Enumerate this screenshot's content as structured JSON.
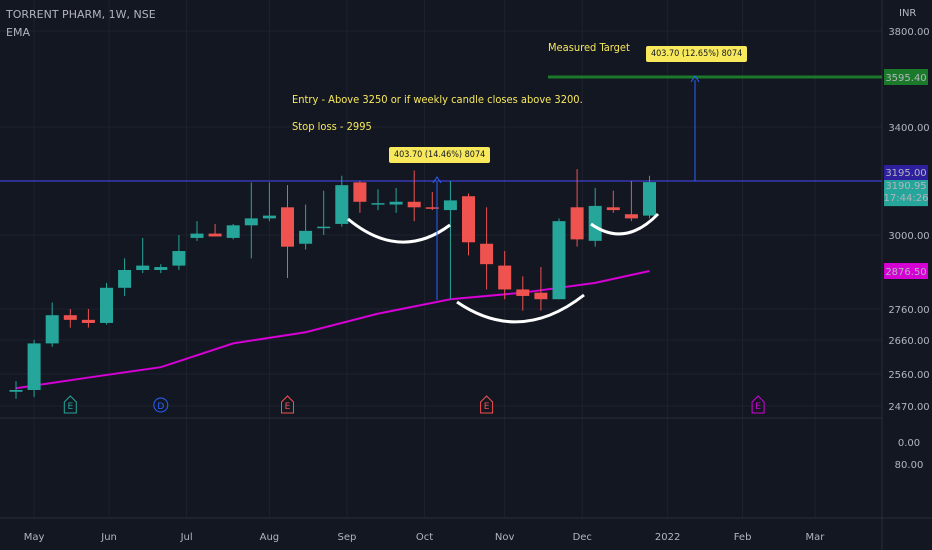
{
  "header": {
    "symbol_line": "TORRENT PHARM, 1W, NSE",
    "indicator": "EMA",
    "currency": "INR"
  },
  "annotations": {
    "entry": "Entry - Above 3250 or if  weekly candle closes above 3200.",
    "stop_loss": "Stop loss - 2995",
    "measured_target": "Measured Target",
    "measure_box_1": "403.70 (14.46%) 8074",
    "measure_box_2": "403.70 (12.65%) 8074"
  },
  "price_labels": {
    "target": "3595.40",
    "resistance": "3195.00",
    "last_price": "3190.95",
    "countdown": "17:44:26",
    "ema": "2876.50"
  },
  "colors": {
    "up": "#26a69a",
    "down": "#ef5350",
    "ema": "#d500d4",
    "target_line": "#1b7a2a",
    "resistance_line": "#4a4aff",
    "annotation": "#f7e85c",
    "background": "#131722"
  },
  "event_markers": [
    {
      "letter": "E",
      "color": "#26a69a",
      "shape": "pentagon",
      "date": "2021-05-17"
    },
    {
      "letter": "D",
      "color": "#2962ff",
      "shape": "circle",
      "date": "2021-06-21"
    },
    {
      "letter": "E",
      "color": "#ef5350",
      "shape": "pentagon",
      "date": "2021-08-09"
    },
    {
      "letter": "E",
      "color": "#ef5350",
      "shape": "pentagon",
      "date": "2021-10-25"
    },
    {
      "letter": "E",
      "color": "#d500d4",
      "shape": "pentagon",
      "date": "2022-02-07"
    }
  ],
  "chart_data": {
    "type": "candlestick",
    "title": "TORRENT PHARM, 1W, NSE",
    "y_unit": "INR",
    "y_ticks": [
      2470,
      2560,
      2660,
      2760,
      2876.5,
      3000,
      3190.95,
      3195,
      3400,
      3595.4,
      3800
    ],
    "y_tick_labels": [
      "2470.00",
      "2560.00",
      "2660.00",
      "2760.00",
      "2876.50",
      "3000.00",
      "3190.95",
      "3195.00",
      "3400.00",
      "3595.40",
      "3800.00"
    ],
    "ylim": [
      2450,
      3830
    ],
    "volume_pane": {
      "ticks": [
        0,
        80
      ],
      "tick_labels": [
        "0.00",
        "80.00"
      ]
    },
    "x_labels": [
      {
        "label": "May",
        "date": "2021-05-03"
      },
      {
        "label": "Jun",
        "date": "2021-06-01"
      },
      {
        "label": "Jul",
        "date": "2021-07-01"
      },
      {
        "label": "Aug",
        "date": "2021-08-02"
      },
      {
        "label": "Sep",
        "date": "2021-09-01"
      },
      {
        "label": "Oct",
        "date": "2021-10-01"
      },
      {
        "label": "Nov",
        "date": "2021-11-01"
      },
      {
        "label": "Dec",
        "date": "2021-12-01"
      },
      {
        "label": "2022",
        "date": "2022-01-03"
      },
      {
        "label": "Feb",
        "date": "2022-02-01"
      },
      {
        "label": "Mar",
        "date": "2022-03-01"
      }
    ],
    "xlim": [
      "2021-04-26",
      "2022-03-28"
    ],
    "candles": [
      {
        "date": "2021-04-26",
        "open": 2510,
        "high": 2540,
        "low": 2490,
        "close": 2515
      },
      {
        "date": "2021-05-03",
        "open": 2515,
        "high": 2660,
        "low": 2495,
        "close": 2650
      },
      {
        "date": "2021-05-10",
        "open": 2650,
        "high": 2780,
        "low": 2640,
        "close": 2740
      },
      {
        "date": "2021-05-17",
        "open": 2740,
        "high": 2760,
        "low": 2700,
        "close": 2725
      },
      {
        "date": "2021-05-24",
        "open": 2725,
        "high": 2760,
        "low": 2700,
        "close": 2715
      },
      {
        "date": "2021-05-31",
        "open": 2715,
        "high": 2840,
        "low": 2710,
        "close": 2825
      },
      {
        "date": "2021-06-07",
        "open": 2825,
        "high": 2920,
        "low": 2800,
        "close": 2880
      },
      {
        "date": "2021-06-14",
        "open": 2880,
        "high": 2990,
        "low": 2870,
        "close": 2895
      },
      {
        "date": "2021-06-21",
        "open": 2880,
        "high": 2900,
        "low": 2870,
        "close": 2890
      },
      {
        "date": "2021-06-28",
        "open": 2895,
        "high": 3000,
        "low": 2880,
        "close": 2945
      },
      {
        "date": "2021-07-05",
        "open": 2990,
        "high": 3050,
        "low": 2980,
        "close": 3005
      },
      {
        "date": "2021-07-12",
        "open": 3005,
        "high": 3040,
        "low": 2995,
        "close": 2995
      },
      {
        "date": "2021-07-19",
        "open": 2990,
        "high": 3040,
        "low": 2985,
        "close": 3035
      },
      {
        "date": "2021-07-26",
        "open": 3035,
        "high": 3190,
        "low": 2920,
        "close": 3060
      },
      {
        "date": "2021-08-02",
        "open": 3060,
        "high": 3190,
        "low": 3050,
        "close": 3070
      },
      {
        "date": "2021-08-09",
        "open": 3100,
        "high": 3180,
        "low": 2855,
        "close": 2960
      },
      {
        "date": "2021-08-16",
        "open": 2970,
        "high": 3110,
        "low": 2950,
        "close": 3015
      },
      {
        "date": "2021-08-23",
        "open": 3030,
        "high": 3160,
        "low": 3000,
        "close": 3030
      },
      {
        "date": "2021-08-30",
        "open": 3040,
        "high": 3215,
        "low": 3030,
        "close": 3180
      },
      {
        "date": "2021-09-06",
        "open": 3190,
        "high": 3195,
        "low": 3080,
        "close": 3120
      },
      {
        "date": "2021-09-13",
        "open": 3115,
        "high": 3165,
        "low": 3090,
        "close": 3115
      },
      {
        "date": "2021-09-20",
        "open": 3110,
        "high": 3170,
        "low": 3080,
        "close": 3120
      },
      {
        "date": "2021-09-27",
        "open": 3120,
        "high": 3235,
        "low": 3050,
        "close": 3100
      },
      {
        "date": "2021-10-04",
        "open": 3100,
        "high": 3155,
        "low": 3090,
        "close": 3095
      },
      {
        "date": "2021-10-11",
        "open": 3090,
        "high": 3195,
        "low": 2790,
        "close": 3125
      },
      {
        "date": "2021-10-18",
        "open": 3140,
        "high": 3150,
        "low": 2930,
        "close": 2975
      },
      {
        "date": "2021-10-25",
        "open": 2970,
        "high": 3100,
        "low": 2820,
        "close": 2900
      },
      {
        "date": "2021-11-01",
        "open": 2895,
        "high": 2945,
        "low": 2790,
        "close": 2820
      },
      {
        "date": "2021-11-08",
        "open": 2820,
        "high": 2860,
        "low": 2755,
        "close": 2800
      },
      {
        "date": "2021-11-15",
        "open": 2810,
        "high": 2890,
        "low": 2755,
        "close": 2790
      },
      {
        "date": "2021-11-22",
        "open": 2790,
        "high": 3060,
        "low": 2790,
        "close": 3050
      },
      {
        "date": "2021-11-29",
        "open": 3100,
        "high": 3240,
        "low": 2960,
        "close": 2985
      },
      {
        "date": "2021-12-06",
        "open": 2980,
        "high": 3170,
        "low": 2960,
        "close": 3105
      },
      {
        "date": "2021-12-13",
        "open": 3100,
        "high": 3160,
        "low": 3080,
        "close": 3090
      },
      {
        "date": "2021-12-20",
        "open": 3075,
        "high": 3195,
        "low": 3050,
        "close": 3060
      },
      {
        "date": "2021-12-27",
        "open": 3070,
        "high": 3215,
        "low": 3060,
        "close": 3190.95
      }
    ],
    "ema": [
      {
        "date": "2021-04-26",
        "value": 2520
      },
      {
        "date": "2021-05-24",
        "value": 2550
      },
      {
        "date": "2021-06-21",
        "value": 2580
      },
      {
        "date": "2021-07-19",
        "value": 2650
      },
      {
        "date": "2021-08-16",
        "value": 2685
      },
      {
        "date": "2021-09-13",
        "value": 2745
      },
      {
        "date": "2021-10-11",
        "value": 2790
      },
      {
        "date": "2021-11-08",
        "value": 2810
      },
      {
        "date": "2021-12-06",
        "value": 2840
      },
      {
        "date": "2021-12-27",
        "value": 2876.5
      }
    ],
    "horizontal_levels": [
      {
        "name": "Measured Target",
        "value": 3595.4
      },
      {
        "name": "Resistance",
        "value": 3195
      }
    ]
  }
}
